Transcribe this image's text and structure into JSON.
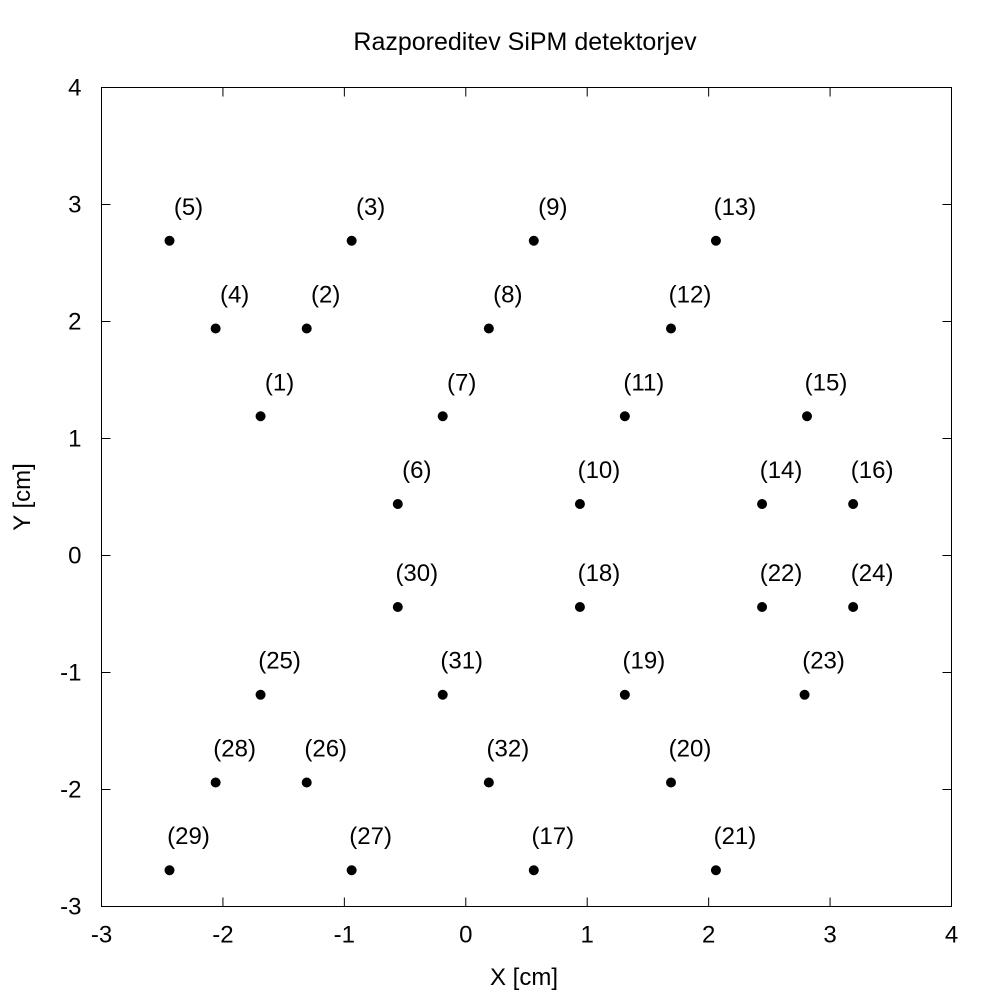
{
  "chart_data": {
    "type": "scatter",
    "title": "Razporeditev SiPM detektorjev",
    "xlabel": "X [cm]",
    "ylabel": "Y [cm]",
    "xlim": [
      -3,
      4
    ],
    "ylim": [
      -3,
      4
    ],
    "xticks": [
      "-3",
      "-2",
      "-1",
      "0",
      "1",
      "2",
      "3",
      "4"
    ],
    "yticks": [
      "-3",
      "-2",
      "-1",
      "0",
      "1",
      "2",
      "3",
      "4"
    ],
    "grid": false,
    "marker_color": "#000000",
    "points": [
      {
        "label": "(1)",
        "x": -1.69,
        "y": 1.19
      },
      {
        "label": "(2)",
        "x": -1.31,
        "y": 1.94
      },
      {
        "label": "(3)",
        "x": -0.94,
        "y": 2.69
      },
      {
        "label": "(4)",
        "x": -2.06,
        "y": 1.94
      },
      {
        "label": "(5)",
        "x": -2.44,
        "y": 2.69
      },
      {
        "label": "(6)",
        "x": -0.56,
        "y": 0.44
      },
      {
        "label": "(7)",
        "x": -0.19,
        "y": 1.19
      },
      {
        "label": "(8)",
        "x": 0.19,
        "y": 1.94
      },
      {
        "label": "(9)",
        "x": 0.56,
        "y": 2.69
      },
      {
        "label": "(10)",
        "x": 0.94,
        "y": 0.44
      },
      {
        "label": "(11)",
        "x": 1.31,
        "y": 1.19
      },
      {
        "label": "(12)",
        "x": 1.69,
        "y": 1.94
      },
      {
        "label": "(13)",
        "x": 2.06,
        "y": 2.69
      },
      {
        "label": "(14)",
        "x": 2.44,
        "y": 0.44
      },
      {
        "label": "(15)",
        "x": 2.81,
        "y": 1.19
      },
      {
        "label": "(16)",
        "x": 3.19,
        "y": 0.44
      },
      {
        "label": "(17)",
        "x": 0.56,
        "y": -2.69
      },
      {
        "label": "(18)",
        "x": 0.94,
        "y": -0.44
      },
      {
        "label": "(19)",
        "x": 1.31,
        "y": -1.19
      },
      {
        "label": "(20)",
        "x": 1.69,
        "y": -1.94
      },
      {
        "label": "(21)",
        "x": 2.06,
        "y": -2.69
      },
      {
        "label": "(22)",
        "x": 2.44,
        "y": -0.44
      },
      {
        "label": "(23)",
        "x": 2.79,
        "y": -1.19
      },
      {
        "label": "(24)",
        "x": 3.19,
        "y": -0.44
      },
      {
        "label": "(25)",
        "x": -1.69,
        "y": -1.19
      },
      {
        "label": "(26)",
        "x": -1.31,
        "y": -1.94
      },
      {
        "label": "(27)",
        "x": -0.94,
        "y": -2.69
      },
      {
        "label": "(28)",
        "x": -2.06,
        "y": -1.94
      },
      {
        "label": "(29)",
        "x": -2.44,
        "y": -2.69
      },
      {
        "label": "(30)",
        "x": -0.56,
        "y": -0.44
      },
      {
        "label": "(31)",
        "x": -0.19,
        "y": -1.19
      },
      {
        "label": "(32)",
        "x": 0.19,
        "y": -1.94
      }
    ]
  }
}
